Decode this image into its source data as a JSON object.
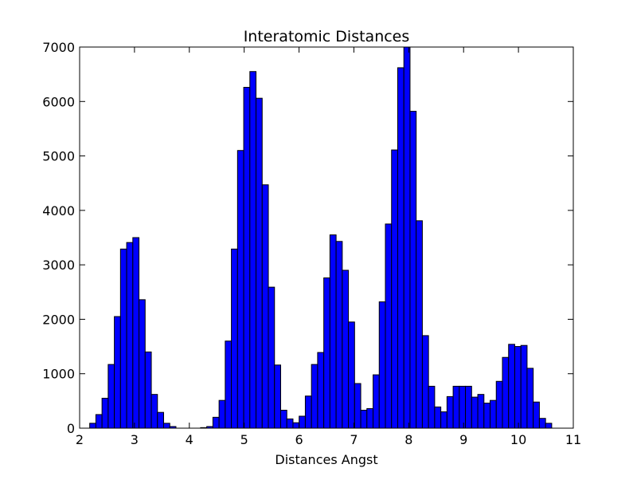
{
  "chart_data": {
    "type": "bar",
    "title": "Interatomic Distances",
    "xlabel": "Distances Angst",
    "ylabel": "",
    "xlim": [
      2,
      11
    ],
    "ylim": [
      0,
      7000
    ],
    "xticks": [
      "2",
      "3",
      "4",
      "5",
      "6",
      "7",
      "8",
      "9",
      "10",
      "11"
    ],
    "yticks": [
      "0",
      "1000",
      "2000",
      "3000",
      "4000",
      "5000",
      "6000",
      "7000"
    ],
    "grid": false,
    "bar_color": "#0000ff",
    "edge_color": "#000000",
    "bin_start": 2.1838,
    "bin_width": 0.1123,
    "values": [
      90,
      250,
      550,
      1170,
      2050,
      3290,
      3410,
      3500,
      2360,
      1400,
      620,
      290,
      90,
      30,
      0,
      0,
      0,
      0,
      10,
      30,
      200,
      510,
      1600,
      3290,
      5100,
      6260,
      6550,
      6060,
      4470,
      2590,
      1160,
      330,
      170,
      100,
      220,
      590,
      1170,
      1390,
      2760,
      3550,
      3430,
      2900,
      1950,
      820,
      330,
      360,
      980,
      2320,
      3750,
      5110,
      6620,
      7000,
      5820,
      3810,
      1700,
      770,
      390,
      300,
      580,
      770,
      770,
      770,
      570,
      620,
      460,
      510,
      860,
      1300,
      1540,
      1500,
      1520,
      1100,
      480,
      180,
      90
    ]
  }
}
